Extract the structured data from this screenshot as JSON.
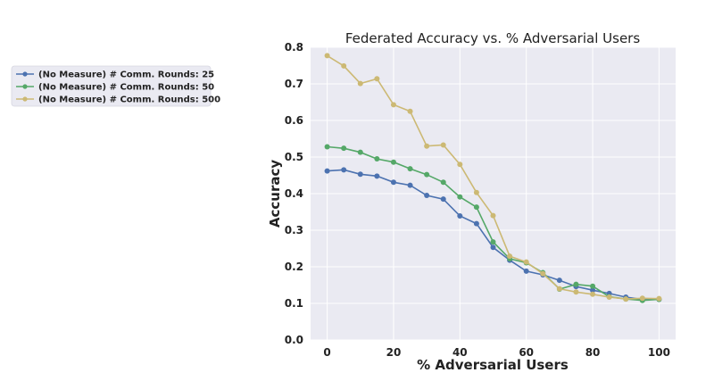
{
  "chart_data": {
    "type": "line",
    "title": "Federated Accuracy vs. % Adversarial Users",
    "xlabel": "% Adversarial Users",
    "ylabel": "Accuracy",
    "xlim": [
      -5,
      105
    ],
    "ylim": [
      0.0,
      0.8
    ],
    "xticks": [
      0,
      20,
      40,
      60,
      80,
      100
    ],
    "yticks": [
      0.0,
      0.1,
      0.2,
      0.3,
      0.4,
      0.5,
      0.6,
      0.7,
      0.8
    ],
    "ytick_labels": [
      "0.0",
      "0.1",
      "0.2",
      "0.3",
      "0.4",
      "0.5",
      "0.6",
      "0.7",
      "0.8"
    ],
    "grid": true,
    "legend_position": "outside-left",
    "x": [
      0,
      5,
      10,
      15,
      20,
      25,
      30,
      35,
      40,
      45,
      50,
      55,
      60,
      65,
      70,
      75,
      80,
      85,
      90,
      95,
      100
    ],
    "series": [
      {
        "name": "(No Measure) # Comm. Rounds: 25",
        "color": "#4c72b0",
        "values": [
          0.462,
          0.465,
          0.453,
          0.448,
          0.431,
          0.423,
          0.395,
          0.385,
          0.339,
          0.318,
          0.253,
          0.218,
          0.188,
          0.178,
          0.163,
          0.146,
          0.136,
          0.127,
          0.117,
          0.111,
          0.111
        ]
      },
      {
        "name": "(No Measure) # Comm. Rounds: 50",
        "color": "#55a868",
        "values": [
          0.528,
          0.524,
          0.513,
          0.495,
          0.486,
          0.468,
          0.452,
          0.431,
          0.391,
          0.363,
          0.268,
          0.222,
          0.211,
          0.184,
          0.139,
          0.152,
          0.147,
          0.118,
          0.112,
          0.108,
          0.111
        ]
      },
      {
        "name": "(No Measure) # Comm. Rounds: 500",
        "color": "#ccb974",
        "values": [
          0.777,
          0.749,
          0.701,
          0.714,
          0.643,
          0.625,
          0.53,
          0.533,
          0.48,
          0.403,
          0.34,
          0.229,
          0.213,
          0.181,
          0.14,
          0.131,
          0.125,
          0.117,
          0.112,
          0.114,
          0.113
        ]
      }
    ]
  }
}
